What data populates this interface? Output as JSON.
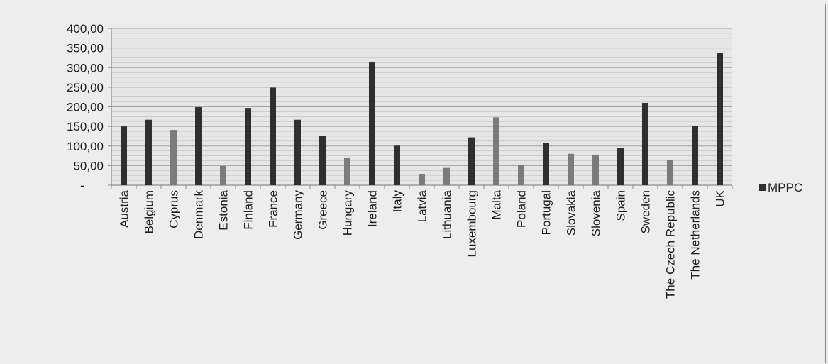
{
  "chart_data": {
    "type": "bar",
    "categories": [
      "Austria",
      "Belgium",
      "Cyprus",
      "Denmark",
      "Estonia",
      "Finland",
      "France",
      "Germany",
      "Greece",
      "Hungary",
      "Ireland",
      "Italy",
      "Latvia",
      "Lithuania",
      "Luxembourg",
      "Malta",
      "Poland",
      "Portugal",
      "Slovakia",
      "Slovenia",
      "Spain",
      "Sweden",
      "The Czech Republic",
      "The Netherlands",
      "UK"
    ],
    "series": [
      {
        "name": "MPPC",
        "values": [
          150,
          167,
          141,
          199,
          49,
          197,
          249,
          167,
          125,
          70,
          313,
          101,
          29,
          44,
          122,
          173,
          52,
          107,
          80,
          78,
          95,
          210,
          65,
          152,
          337
        ]
      }
    ],
    "bar_shades": [
      "dark",
      "dark",
      "light",
      "dark",
      "light",
      "dark",
      "dark",
      "dark",
      "dark",
      "light",
      "dark",
      "dark",
      "light",
      "light",
      "dark",
      "light",
      "light",
      "dark",
      "light",
      "light",
      "dark",
      "dark",
      "light",
      "dark",
      "dark"
    ],
    "colors": {
      "dark": "#2f2f2f",
      "light": "#7b7b7b",
      "grid": "#9a9a9a",
      "axis": "#8c8c8c"
    },
    "y_ticks": [
      "400,00",
      "350,00",
      "300,00",
      "250,00",
      "200,00",
      "150,00",
      "100,00",
      "50,00",
      "-"
    ],
    "ylim": [
      0,
      400
    ],
    "grid": true,
    "legend": {
      "position": "right",
      "label": "MPPC"
    },
    "title": "",
    "xlabel": "",
    "ylabel": ""
  }
}
